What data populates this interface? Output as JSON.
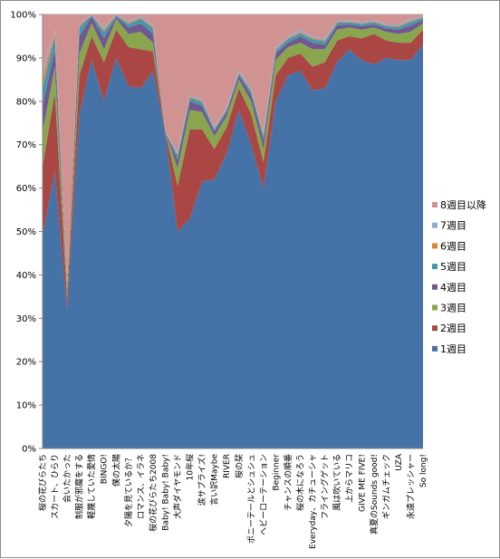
{
  "chart_data": {
    "type": "area",
    "stacked": "percent",
    "title": "",
    "xlabel": "",
    "ylabel": "",
    "ylim": [
      0,
      100
    ],
    "yticks": [
      "0%",
      "10%",
      "20%",
      "30%",
      "40%",
      "50%",
      "60%",
      "70%",
      "80%",
      "90%",
      "100%"
    ],
    "grid": true,
    "legend": "right",
    "categories": [
      "桜の花びらたち",
      "スカート、ひらり",
      "会いたかった",
      "制服が邪魔をする",
      "軽蔑していた愛情",
      "BINGO!",
      "僕の太陽",
      "夕陽を見ているか？",
      "ロマンス、イラネ",
      "桜の花びらたち2008",
      "Baby! Baby! Baby!",
      "大声ダイヤモンド",
      "10年桜",
      "涙サプライズ!",
      "言い訳Maybe",
      "RIVER",
      "桜の栞",
      "ポニーテールとシュシュ",
      "ヘビーローテーション",
      "Beginner",
      "チャンスの順番",
      "桜の木になろう",
      "Everyday、カチューシャ",
      "フライングゲット",
      "風は吹いている",
      "上からマリコ",
      "GIVE ME FIVE!",
      "真夏のSounds good!",
      "ギンガムチェック",
      "UZA",
      "永遠プレッシャー",
      "So long!"
    ],
    "series": [
      {
        "name": "1週目",
        "color": "#4572a7",
        "values": [
          49,
          64,
          32,
          77,
          89.5,
          80,
          90,
          83.5,
          83,
          87,
          73,
          50,
          53,
          61.5,
          62,
          68,
          78,
          70,
          60,
          80,
          86,
          87,
          82.5,
          83,
          89,
          92,
          89.5,
          88.5,
          90,
          89.5,
          89.5,
          93
        ]
      },
      {
        "name": "2週目",
        "color": "#aa4643",
        "values": [
          16,
          18,
          2.5,
          9,
          5.5,
          9,
          6.5,
          9,
          9,
          4.5,
          0,
          10.5,
          20.5,
          12,
          7,
          6,
          5,
          7,
          6,
          6,
          4,
          4,
          5.5,
          6,
          5,
          3,
          5,
          7,
          4,
          4,
          4,
          3.5
        ]
      },
      {
        "name": "3週目",
        "color": "#89a54e",
        "values": [
          8,
          6,
          2,
          5,
          3,
          3,
          2.5,
          3,
          4,
          2,
          0,
          4,
          4.5,
          4,
          3,
          2.5,
          2,
          3,
          3,
          3.5,
          2.5,
          2.5,
          4,
          3,
          2.5,
          2,
          2,
          1.5,
          2,
          2,
          2.5,
          1.5
        ]
      },
      {
        "name": "4週目",
        "color": "#71588f",
        "values": [
          6,
          4,
          1,
          4,
          1.5,
          2.5,
          0.5,
          1.5,
          2,
          2,
          0,
          2,
          2,
          1.5,
          1,
          1,
          1,
          1.5,
          2,
          1.5,
          1,
          1.5,
          1.5,
          1,
          1,
          0.7,
          0.8,
          0.7,
          0.8,
          1,
          1.5,
          0.7
        ]
      },
      {
        "name": "5週目",
        "color": "#4198af",
        "values": [
          4,
          3,
          0.5,
          2,
          0.3,
          1.5,
          0.3,
          0.8,
          1,
          1.3,
          0,
          1,
          0.8,
          0.8,
          0.6,
          0.5,
          0.5,
          0.8,
          1,
          0.7,
          0.8,
          0.7,
          0.8,
          0.8,
          0.6,
          0.5,
          0.5,
          0.5,
          0.5,
          0.6,
          0.8,
          0.5
        ]
      },
      {
        "name": "6週目",
        "color": "#db843d",
        "values": [
          2.5,
          0.8,
          0.3,
          0.5,
          0.1,
          0.5,
          0.1,
          0.3,
          0.3,
          0.3,
          0,
          0.3,
          0.3,
          0.3,
          0.2,
          0.2,
          0.2,
          0.3,
          0.3,
          0.3,
          0.3,
          0.3,
          0.3,
          0.3,
          0.2,
          0.2,
          0.2,
          0.2,
          0.2,
          0.3,
          0.3,
          0.2
        ]
      },
      {
        "name": "7週目",
        "color": "#93a9cf",
        "values": [
          1.5,
          0.6,
          0.2,
          0.5,
          0.1,
          0.5,
          0.1,
          0.4,
          0.4,
          0.4,
          0,
          0.5,
          0.4,
          0.4,
          0.3,
          0.3,
          0.5,
          0.4,
          0.4,
          0.5,
          0.4,
          0.5,
          0.4,
          0.4,
          0.3,
          0.3,
          0.3,
          0.3,
          0.3,
          0.4,
          0.4,
          0.3
        ]
      },
      {
        "name": "8週目以降",
        "color": "#d19392",
        "values": [
          13,
          3.6,
          61.5,
          2,
          0,
          3,
          0,
          1.5,
          0.3,
          2.5,
          27,
          31.7,
          18.5,
          19.5,
          25.9,
          21.5,
          12.8,
          17,
          27.3,
          7.5,
          5,
          3.5,
          5,
          5.5,
          1.4,
          1.3,
          1.7,
          1.3,
          2.2,
          2.2,
          1,
          0.3
        ]
      }
    ]
  }
}
